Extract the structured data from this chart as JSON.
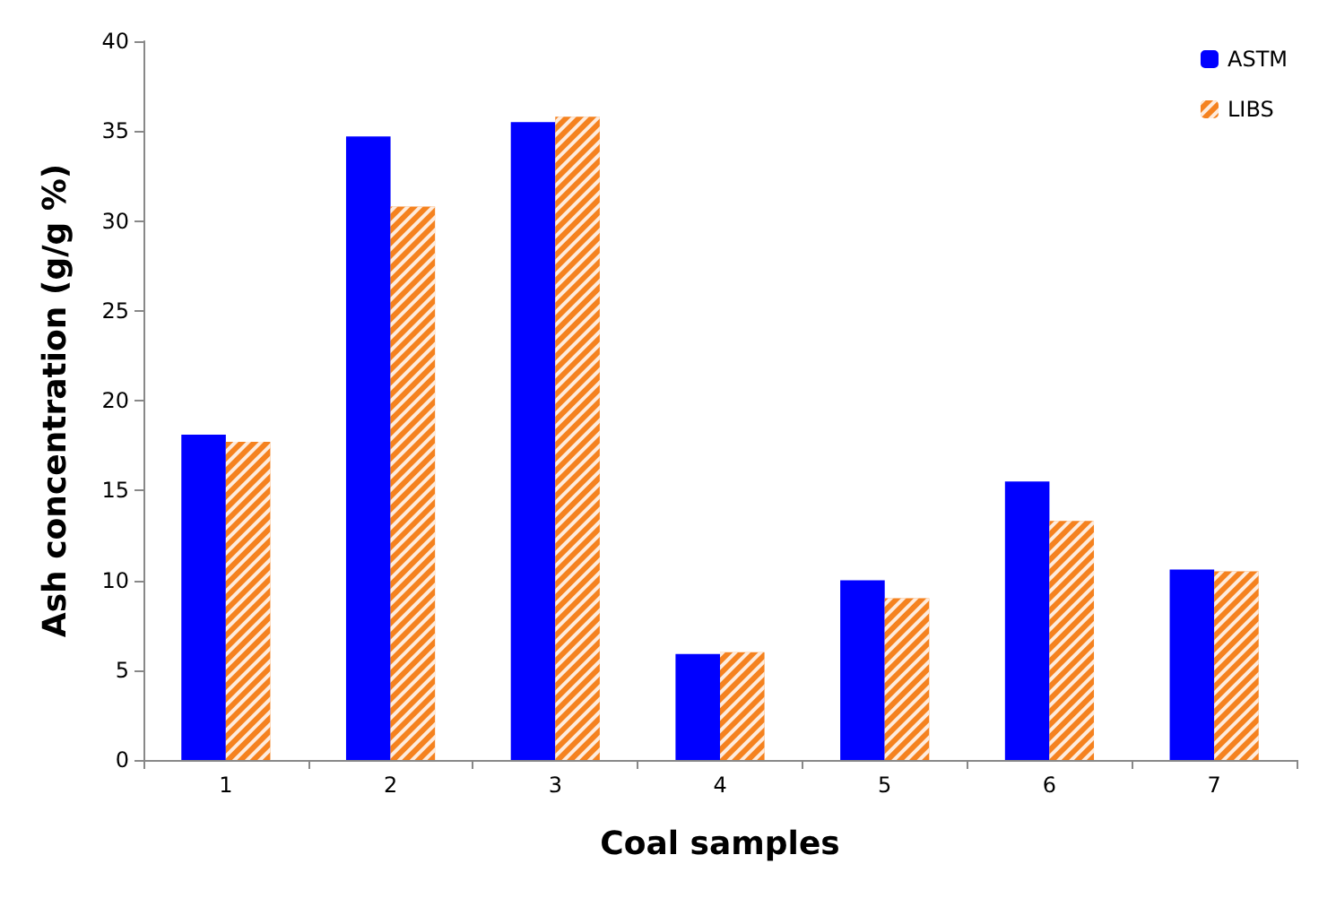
{
  "chart_data": {
    "type": "bar",
    "xlabel": "Coal samples",
    "ylabel": "Ash concentration (g/g %)",
    "categories": [
      "1",
      "2",
      "3",
      "4",
      "5",
      "6",
      "7"
    ],
    "series": [
      {
        "name": "ASTM",
        "color": "#0000ff",
        "values": [
          18.1,
          34.7,
          35.5,
          5.9,
          10.0,
          15.5,
          10.6
        ]
      },
      {
        "name": "LIBS",
        "color": "#f5821f",
        "values": [
          17.7,
          30.8,
          35.8,
          6.0,
          9.0,
          13.3,
          10.5
        ]
      }
    ],
    "ylim": [
      0,
      40
    ],
    "yticks": [
      0,
      5,
      10,
      15,
      20,
      25,
      30,
      35,
      40
    ],
    "grid": false,
    "legend": "top right"
  }
}
